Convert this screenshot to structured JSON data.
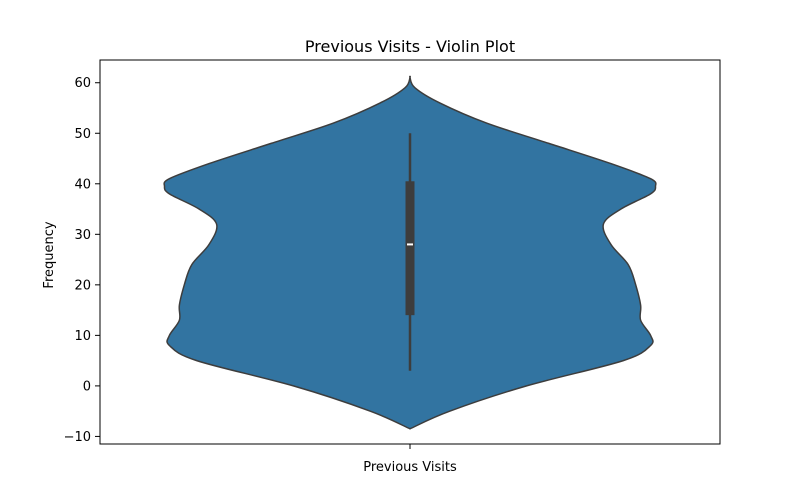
{
  "chart_data": {
    "type": "violin",
    "title": "Previous Visits - Violin Plot",
    "xlabel": "",
    "ylabel": "Frequency",
    "categories": [
      "Previous Visits"
    ],
    "ylim": [
      -11.5,
      64.5
    ],
    "yticks": [
      -10,
      0,
      10,
      20,
      30,
      40,
      50,
      60
    ],
    "grid": false,
    "colors": {
      "violin_fill": "#3274a1",
      "violin_edge": "#3d3d3d",
      "box": "#3d3d3d",
      "median": "#ffffff"
    },
    "summary": {
      "min": 3,
      "q1": 14,
      "median": 28,
      "q3": 40.5,
      "max": 50
    },
    "density": {
      "y": [
        -8.5,
        -5,
        0,
        5,
        8,
        10,
        13,
        16,
        20,
        24,
        28,
        32,
        35,
        38,
        39.5,
        41,
        44,
        48,
        52,
        56,
        59,
        61
      ],
      "half_width": [
        0.0,
        0.16,
        0.47,
        0.86,
        0.97,
        0.97,
        0.93,
        0.93,
        0.91,
        0.88,
        0.81,
        0.78,
        0.85,
        0.97,
        0.99,
        0.97,
        0.81,
        0.56,
        0.31,
        0.12,
        0.02,
        0.0
      ]
    }
  }
}
